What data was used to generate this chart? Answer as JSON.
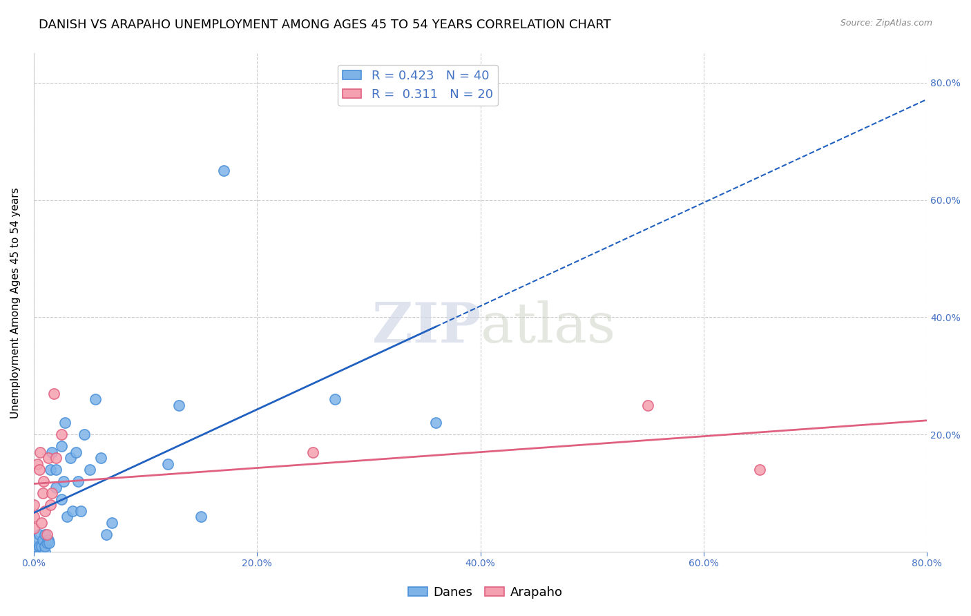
{
  "title": "DANISH VS ARAPAHO UNEMPLOYMENT AMONG AGES 45 TO 54 YEARS CORRELATION CHART",
  "source": "Source: ZipAtlas.com",
  "ylabel": "Unemployment Among Ages 45 to 54 years",
  "xlim": [
    0.0,
    0.8
  ],
  "ylim": [
    0.0,
    0.85
  ],
  "xticks": [
    0.0,
    0.2,
    0.4,
    0.6,
    0.8
  ],
  "yticks": [
    0.0,
    0.2,
    0.4,
    0.6,
    0.8
  ],
  "xtick_labels": [
    "0.0%",
    "20.0%",
    "40.0%",
    "60.0%",
    "80.0%"
  ],
  "ytick_labels": [
    "",
    "20.0%",
    "40.0%",
    "60.0%",
    "80.0%"
  ],
  "danes_color": "#7EB3E8",
  "danes_edge_color": "#4A90D9",
  "arapaho_color": "#F5A0B0",
  "arapaho_edge_color": "#E06080",
  "danes_line_color": "#2060C0",
  "arapaho_line_color": "#E06080",
  "danes_R": 0.423,
  "danes_N": 40,
  "arapaho_R": 0.311,
  "arapaho_N": 20,
  "danes_x": [
    0.0,
    0.0,
    0.0,
    0.0,
    0.005,
    0.005,
    0.007,
    0.008,
    0.01,
    0.01,
    0.01,
    0.012,
    0.013,
    0.014,
    0.015,
    0.016,
    0.02,
    0.02,
    0.025,
    0.025,
    0.027,
    0.028,
    0.03,
    0.033,
    0.035,
    0.038,
    0.04,
    0.042,
    0.045,
    0.05,
    0.055,
    0.06,
    0.065,
    0.07,
    0.12,
    0.13,
    0.15,
    0.17,
    0.27,
    0.36
  ],
  "danes_y": [
    0.0,
    0.01,
    0.01,
    0.02,
    0.01,
    0.03,
    0.01,
    0.02,
    0.0,
    0.01,
    0.03,
    0.015,
    0.02,
    0.015,
    0.14,
    0.17,
    0.11,
    0.14,
    0.09,
    0.18,
    0.12,
    0.22,
    0.06,
    0.16,
    0.07,
    0.17,
    0.12,
    0.07,
    0.2,
    0.14,
    0.26,
    0.16,
    0.03,
    0.05,
    0.15,
    0.25,
    0.06,
    0.65,
    0.26,
    0.22
  ],
  "arapaho_x": [
    0.0,
    0.0,
    0.0,
    0.003,
    0.005,
    0.006,
    0.007,
    0.008,
    0.009,
    0.01,
    0.012,
    0.013,
    0.015,
    0.016,
    0.018,
    0.02,
    0.025,
    0.25,
    0.55,
    0.65
  ],
  "arapaho_y": [
    0.04,
    0.06,
    0.08,
    0.15,
    0.14,
    0.17,
    0.05,
    0.1,
    0.12,
    0.07,
    0.03,
    0.16,
    0.08,
    0.1,
    0.27,
    0.16,
    0.2,
    0.17,
    0.25,
    0.14
  ],
  "watermark_zip": "ZIP",
  "watermark_atlas": "atlas",
  "background_color": "#ffffff",
  "grid_color": "#cccccc",
  "tick_color": "#4472c4",
  "title_fontsize": 13,
  "label_fontsize": 11,
  "tick_fontsize": 10,
  "legend_fontsize": 13
}
